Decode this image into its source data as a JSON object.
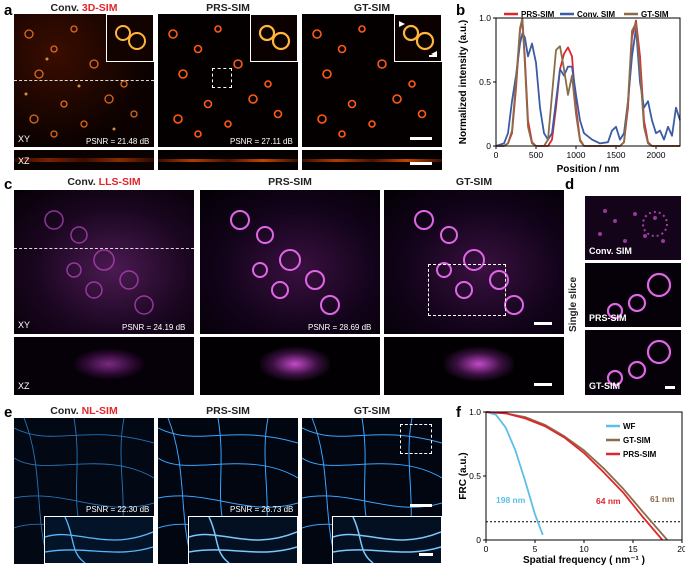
{
  "panel_letters": [
    "a",
    "b",
    "c",
    "d",
    "e",
    "f"
  ],
  "panel_a": {
    "titles": [
      {
        "prefix": "Conv. ",
        "highlight": "3D-SIM"
      },
      {
        "prefix": "PRS-SIM",
        "highlight": ""
      },
      {
        "prefix": "GT-SIM",
        "highlight": ""
      }
    ],
    "view_xy": "XY",
    "view_xz": "XZ",
    "psnr": [
      "PSNR = 21.48 dB",
      "PSNR = 27.11 dB"
    ]
  },
  "panel_c": {
    "titles": [
      {
        "prefix": "Conv. ",
        "highlight": "LLS-SIM"
      },
      {
        "prefix": "PRS-SIM",
        "highlight": ""
      },
      {
        "prefix": "GT-SIM",
        "highlight": ""
      }
    ],
    "view_xy": "XY",
    "view_xz": "XZ",
    "psnr": [
      "PSNR = 24.19 dB",
      "PSNR = 28.69 dB"
    ]
  },
  "panel_d": {
    "side_label": "Single slice",
    "labels": [
      "Conv. SIM",
      "PRS-SIM",
      "GT-SIM"
    ]
  },
  "panel_e": {
    "titles": [
      {
        "prefix": "Conv. ",
        "highlight": "NL-SIM"
      },
      {
        "prefix": "PRS-SIM",
        "highlight": ""
      },
      {
        "prefix": "GT-SIM",
        "highlight": ""
      }
    ],
    "psnr": [
      "PSNR = 22.30 dB",
      "PSNR = 26.73 dB"
    ]
  },
  "colors": {
    "accent_red": "#e0262b",
    "hot_colormap": "#ff6a1a",
    "magenta": "#d84fd8",
    "cyan": "#3fb0ff"
  },
  "chart_data": [
    {
      "type": "line",
      "panel": "b",
      "xlabel": "Position / nm",
      "ylabel": "Normalized intensity (a.u.)",
      "xlim": [
        0,
        2300
      ],
      "ylim": [
        0,
        1.0
      ],
      "xticks": [
        0,
        500,
        1000,
        1500,
        2000
      ],
      "yticks": [
        0,
        0.5,
        1.0
      ],
      "ytick_labels": [
        "0",
        "0.5",
        "1.0"
      ],
      "legend_position": "top",
      "x": [
        0,
        100,
        150,
        200,
        250,
        300,
        330,
        360,
        400,
        450,
        500,
        550,
        600,
        650,
        700,
        750,
        800,
        850,
        900,
        950,
        1000,
        1050,
        1100,
        1200,
        1300,
        1400,
        1450,
        1500,
        1550,
        1600,
        1650,
        1700,
        1750,
        1800,
        1850,
        1900,
        1950,
        2000,
        2050,
        2100,
        2150,
        2200,
        2250,
        2300
      ],
      "series": [
        {
          "name": "PRS-SIM",
          "color": "#e0262b",
          "values": [
            0,
            0,
            0.02,
            0.1,
            0.45,
            0.9,
            0.98,
            0.7,
            0.2,
            0.03,
            0,
            0,
            0,
            0,
            0.05,
            0.3,
            0.6,
            0.72,
            0.77,
            0.7,
            0.3,
            0.05,
            0,
            0,
            0,
            0,
            0,
            0,
            0,
            0.03,
            0.3,
            0.85,
            0.98,
            0.7,
            0.2,
            0.03,
            0,
            0,
            0,
            0,
            0,
            0,
            0,
            0
          ]
        },
        {
          "name": "Conv. SIM",
          "color": "#3b5ba5",
          "values": [
            0,
            0.02,
            0.1,
            0.35,
            0.55,
            0.8,
            0.88,
            0.85,
            0.7,
            0.8,
            0.65,
            0.3,
            0.1,
            0.05,
            0.1,
            0.35,
            0.6,
            0.55,
            0.62,
            0.62,
            0.4,
            0.2,
            0.1,
            0.05,
            0.02,
            0.03,
            0.12,
            0.15,
            0.05,
            0.1,
            0.35,
            0.7,
            0.92,
            0.5,
            0.3,
            0.35,
            0.2,
            0.1,
            0.12,
            0.05,
            0.15,
            0.08,
            0.3,
            0.2
          ]
        },
        {
          "name": "GT-SIM",
          "color": "#8b6b4a",
          "values": [
            0,
            0,
            0.02,
            0.12,
            0.5,
            0.92,
            1.0,
            0.65,
            0.15,
            0.02,
            0,
            0,
            0,
            0.05,
            0.4,
            0.75,
            0.78,
            0.6,
            0.4,
            0.55,
            0.25,
            0.04,
            0,
            0,
            0,
            0,
            0,
            0,
            0,
            0.03,
            0.35,
            0.9,
            0.96,
            0.6,
            0.15,
            0.02,
            0,
            0,
            0,
            0,
            0,
            0,
            0,
            0
          ]
        }
      ]
    },
    {
      "type": "line",
      "panel": "f",
      "xlabel": "Spatial frequency ( nm⁻¹ )",
      "ylabel": "FRC (a.u.)",
      "xlim": [
        0,
        20
      ],
      "ylim": [
        0,
        1.0
      ],
      "xticks": [
        0,
        5,
        10,
        15,
        20
      ],
      "yticks": [
        0,
        0.5,
        1.0
      ],
      "ytick_labels": [
        "0",
        "0.5",
        "1.0"
      ],
      "threshold": 0.143,
      "legend_position": "top-right",
      "series": [
        {
          "name": "WF",
          "color": "#5bc0e6",
          "x": [
            0,
            1,
            2,
            3,
            4,
            5,
            5.8
          ],
          "values": [
            1.0,
            0.98,
            0.88,
            0.7,
            0.46,
            0.2,
            0.04
          ]
        },
        {
          "name": "GT-SIM",
          "color": "#8b6b4a",
          "x": [
            0,
            2,
            4,
            6,
            8,
            10,
            12,
            14,
            16,
            18.5
          ],
          "values": [
            1.0,
            0.99,
            0.96,
            0.9,
            0.81,
            0.7,
            0.56,
            0.4,
            0.22,
            -0.05
          ]
        },
        {
          "name": "PRS-SIM",
          "color": "#e0262b",
          "x": [
            0,
            2,
            4,
            6,
            8,
            10,
            12,
            14,
            16,
            18
          ],
          "values": [
            1.0,
            0.99,
            0.95,
            0.89,
            0.8,
            0.68,
            0.53,
            0.37,
            0.18,
            -0.04
          ]
        }
      ],
      "annotations": [
        {
          "text": "198 nm",
          "color": "#5bc0e6"
        },
        {
          "text": "64 nm",
          "color": "#e0262b"
        },
        {
          "text": "61 nm",
          "color": "#8b6b4a"
        }
      ]
    }
  ]
}
